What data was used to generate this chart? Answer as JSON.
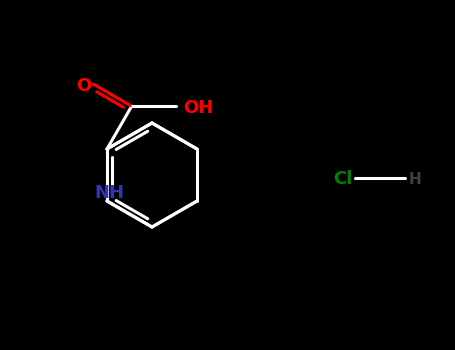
{
  "bg_color": "#000000",
  "bond_color": "#000000",
  "bond_color_white": "#ffffff",
  "nh_color": "#3333bb",
  "oh_color": "#ff0000",
  "o_color": "#ff0000",
  "cl_color": "#008000",
  "hcl_h_color": "#404040",
  "line_width": 2.2,
  "figsize": [
    4.55,
    3.5
  ],
  "dpi": 100,
  "xlim": [
    0,
    455
  ],
  "ylim": [
    0,
    350
  ]
}
